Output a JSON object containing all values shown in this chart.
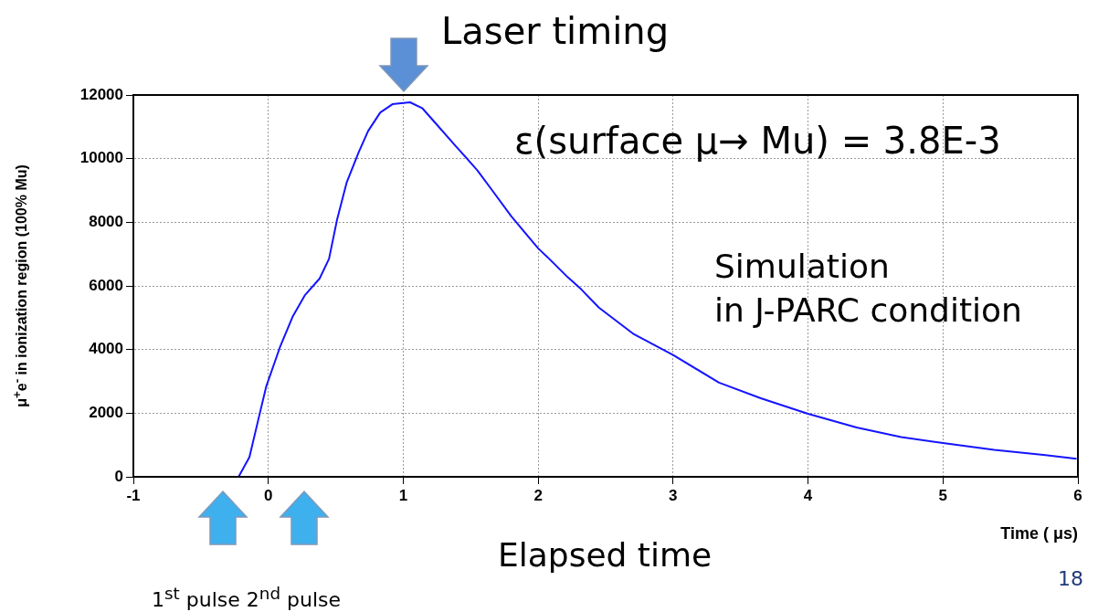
{
  "chart_data": {
    "type": "line",
    "xlabel": "Time ( μs)",
    "ylabel": "μ$^{+}$e$^{-}$ in ionization region (100% Mu)",
    "xlim": [
      -1,
      6
    ],
    "xticks": [
      -1,
      0,
      1,
      2,
      3,
      4,
      5,
      6
    ],
    "ylim": [
      0,
      12000
    ],
    "yticks": [
      0,
      2000,
      4000,
      6000,
      8000,
      10000,
      12000
    ],
    "grid": true,
    "marker": "none",
    "line_style": "solid",
    "series": [
      {
        "color": "#1414ff",
        "x": [
          -0.22,
          -0.14,
          -0.07,
          -0.016,
          0.086,
          0.18,
          0.27,
          0.38,
          0.45,
          0.51,
          0.58,
          0.67,
          0.74,
          0.83,
          0.92,
          1.05,
          1.14,
          1.23,
          1.39,
          1.55,
          1.66,
          1.8,
          2.0,
          2.07,
          2.22,
          2.32,
          2.45,
          2.71,
          3.0,
          3.34,
          3.65,
          4.0,
          4.36,
          4.69,
          5.0,
          5.38,
          5.76,
          5.99
        ],
        "values": [
          0,
          620,
          1870,
          2830,
          4070,
          5030,
          5700,
          6230,
          6850,
          8090,
          9240,
          10200,
          10870,
          11450,
          11710,
          11770,
          11590,
          11160,
          10390,
          9630,
          9000,
          8190,
          7180,
          6900,
          6270,
          5890,
          5320,
          4480,
          3830,
          2960,
          2470,
          1980,
          1550,
          1250,
          1060,
          850,
          680,
          570
        ]
      }
    ],
    "annotations": [
      "Laser timing",
      "ε(surface μ→ Mu) = 3.8E-3",
      "Simulation\nin J-PARC condition",
      "Elapsed time",
      "1$^{st}$ pulse 2$^{nd}$ pulse",
      "18"
    ]
  }
}
